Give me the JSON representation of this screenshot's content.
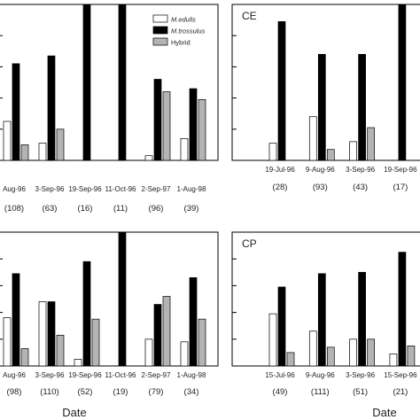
{
  "legend": {
    "entries": [
      {
        "name": "M.edulis",
        "color": "#ffffff"
      },
      {
        "name": "M.trossulus",
        "color": "#000000"
      },
      {
        "name": "Hybrid",
        "color": "#b4b4b4"
      }
    ]
  },
  "chart_data": [
    {
      "type": "bar",
      "panel_label": "",
      "categories": [
        "Aug-96",
        "3-Sep-96",
        "19-Sep-96",
        "11-Oct-96",
        "2-Sep-97",
        "1-Aug-98"
      ],
      "sample_sizes": [
        "(108)",
        "(63)",
        "(16)",
        "(11)",
        "(96)",
        "(39)"
      ],
      "series": [
        {
          "name": "M.edulis",
          "values": [
            0.25,
            0.11,
            0,
            0,
            0.03,
            0.14
          ]
        },
        {
          "name": "M.trossulus",
          "values": [
            0.62,
            0.67,
            1.0,
            1.0,
            0.52,
            0.46
          ]
        },
        {
          "name": "Hybrid",
          "values": [
            0.1,
            0.2,
            0,
            0,
            0.44,
            0.39
          ]
        }
      ],
      "ylim": [
        0,
        1
      ],
      "xlabel": "",
      "legend": "top-right"
    },
    {
      "type": "bar",
      "panel_label": "CE",
      "categories": [
        "19-Jul-96",
        "9-Aug-96",
        "3-Sep-96",
        "19-Sep-96"
      ],
      "sample_sizes": [
        "(28)",
        "(93)",
        "(43)",
        "(17)"
      ],
      "series": [
        {
          "name": "M.edulis",
          "values": [
            0.11,
            0.28,
            0.12,
            0
          ]
        },
        {
          "name": "M.trossulus",
          "values": [
            0.89,
            0.68,
            0.68,
            1.0
          ]
        },
        {
          "name": "Hybrid",
          "values": [
            0,
            0.07,
            0.21,
            0
          ]
        }
      ],
      "ylim": [
        0,
        1
      ],
      "xlabel": ""
    },
    {
      "type": "bar",
      "panel_label": "",
      "categories": [
        "Aug-96",
        "3-Sep-96",
        "19-Sep-96",
        "11-Oct-96",
        "2-Sep-97",
        "1-Aug-98"
      ],
      "sample_sizes": [
        "(98)",
        "(110)",
        "(52)",
        "(19)",
        "(79)",
        "(34)"
      ],
      "series": [
        {
          "name": "M.edulis",
          "values": [
            0.36,
            0.48,
            0.05,
            0,
            0.2,
            0.18
          ]
        },
        {
          "name": "M.trossulus",
          "values": [
            0.69,
            0.48,
            0.78,
            1.0,
            0.46,
            0.66
          ]
        },
        {
          "name": "Hybrid",
          "values": [
            0.13,
            0.23,
            0.35,
            0,
            0.52,
            0.35
          ]
        }
      ],
      "ylim": [
        0,
        1
      ],
      "xlabel": "Date"
    },
    {
      "type": "bar",
      "panel_label": "CP",
      "categories": [
        "15-Jul-96",
        "9-Aug-96",
        "3-Sep-96",
        "15-Sep-96"
      ],
      "sample_sizes": [
        "(49)",
        "(111)",
        "(51)",
        "(21)"
      ],
      "series": [
        {
          "name": "M.edulis",
          "values": [
            0.39,
            0.26,
            0.2,
            0.09
          ]
        },
        {
          "name": "M.trossulus",
          "values": [
            0.59,
            0.69,
            0.7,
            0.85
          ]
        },
        {
          "name": "Hybrid",
          "values": [
            0.1,
            0.14,
            0.2,
            0.15
          ]
        }
      ],
      "ylim": [
        0,
        1
      ],
      "xlabel": "Date"
    }
  ]
}
